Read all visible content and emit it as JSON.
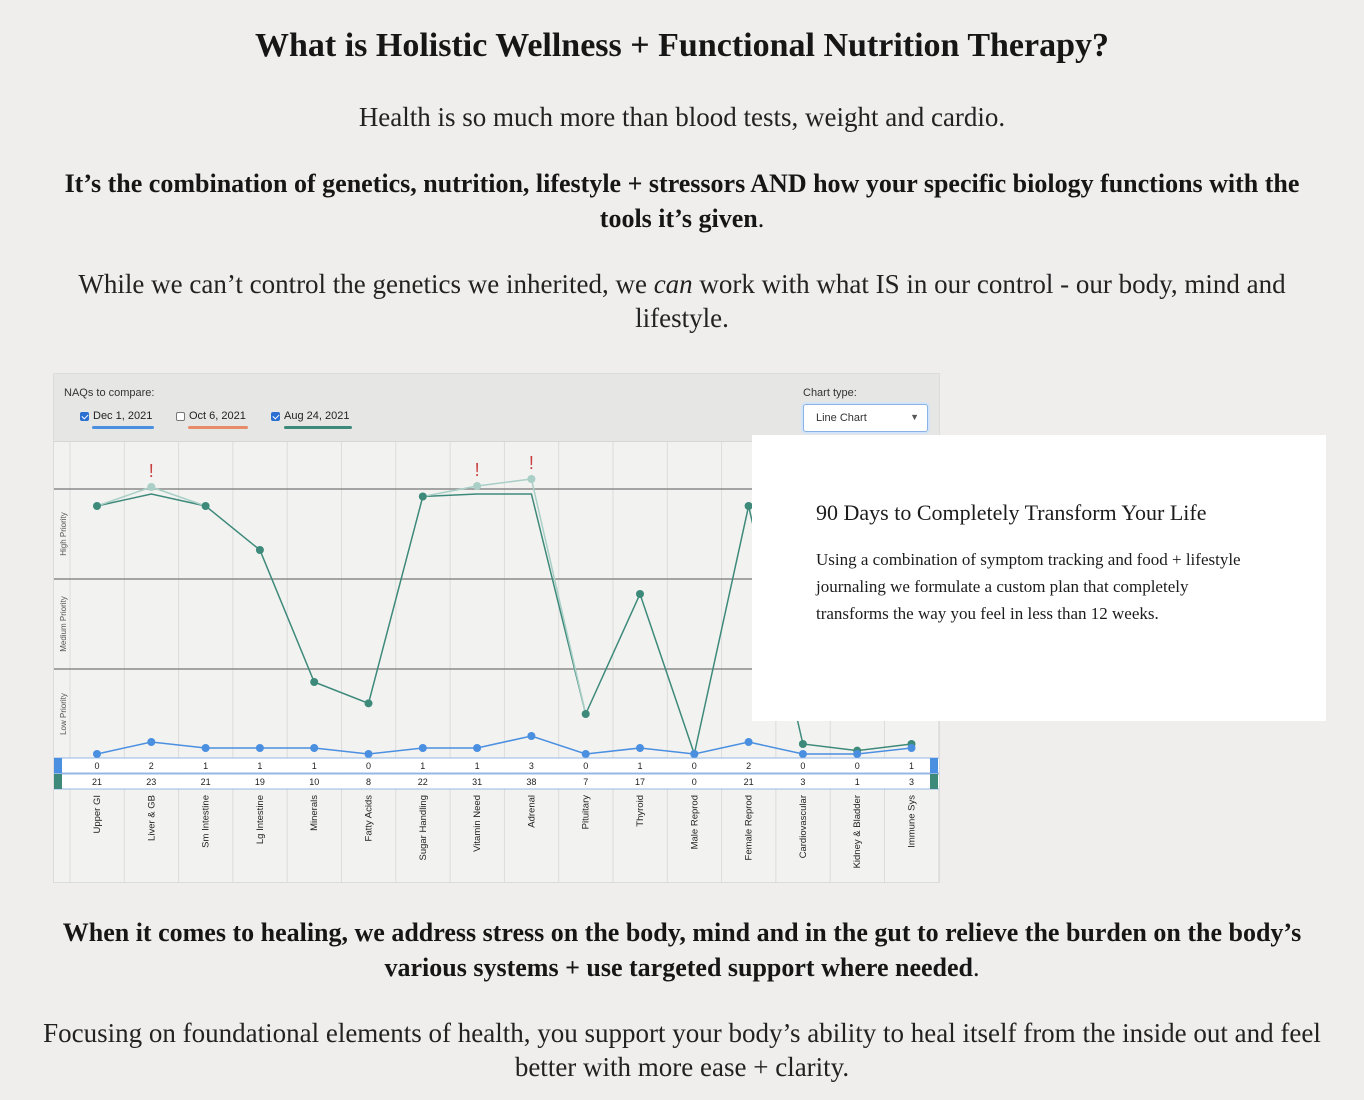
{
  "heading": "What is Holistic Wellness + Functional Nutrition Therapy?",
  "intro": "Health is so much more than blood tests, weight and cardio.",
  "combo_bold": "It’s the combination of genetics, nutrition, lifestyle + stressors AND how your specific biology functions with the tools it’s given",
  "control_pre": "While we can’t control the genetics we inherited, we ",
  "control_em": "can",
  "control_post": " work with what IS in our control - our body, mind and lifestyle.",
  "healing_bold": "When it comes to healing, we address stress on the body, mind and in the gut to relieve the burden on the body’s various systems + use targeted support where needed",
  "period": ".",
  "focus": "Focusing on foundational elements of health, you support your body’s ability to heal itself from the inside out and feel better with more ease + clarity.",
  "naq": {
    "compare_label": "NAQs to compare:",
    "chart_type_label": "Chart type:",
    "chart_type_value": "Line Chart",
    "options": [
      {
        "label": "Dec 1, 2021",
        "checked": true,
        "color": "#4a8fe0"
      },
      {
        "label": "Oct 6, 2021",
        "checked": false,
        "color": "#e88b68"
      },
      {
        "label": "Aug 24, 2021",
        "checked": true,
        "color": "#3e8a7a"
      }
    ]
  },
  "chart_data": {
    "type": "line",
    "priority_bands": [
      "High Priority",
      "Medium Priority",
      "Low Priority"
    ],
    "categories": [
      "Upper GI",
      "Liver & GB",
      "Sm Intestine",
      "Lg Intestine",
      "Minerals",
      "Fatty Acids",
      "Sugar Handling",
      "Vitamin Need",
      "Adrenal",
      "Pituitary",
      "Thyroid",
      "Male Reprod",
      "Female Reprod",
      "Cardiovascular",
      "Kidney & Bladder",
      "Immune Sys"
    ],
    "series": [
      {
        "values": [
          0,
          2,
          1,
          1,
          1,
          0,
          1,
          1,
          3,
          0,
          1,
          0,
          2,
          0,
          0,
          1
        ],
        "color": "#4a8fe0"
      },
      {
        "values": [
          21,
          23,
          21,
          19,
          10,
          8,
          22,
          31,
          38,
          7,
          17,
          0,
          21,
          3,
          1,
          3
        ],
        "color": "#3e8a7a"
      }
    ],
    "alert_mark": "!",
    "alert_color": "#c94040"
  },
  "promo": {
    "title": "90 Days to Completely Transform Your Life",
    "body": "Using a combination of symptom tracking and food + lifestyle journaling we formulate a custom plan that completely transforms the way you feel in less than 12 weeks."
  }
}
